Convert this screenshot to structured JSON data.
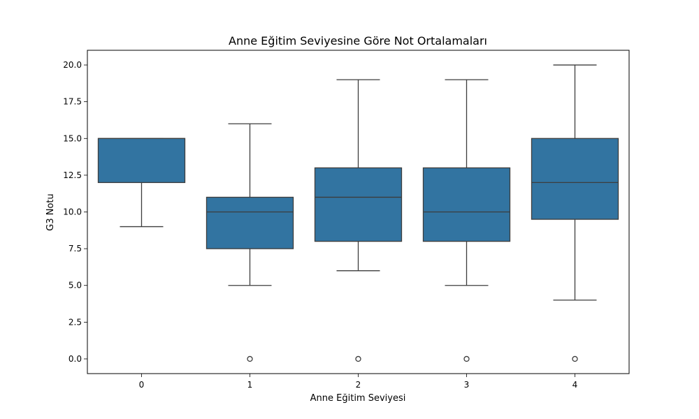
{
  "chart_data": {
    "type": "box",
    "title": "Anne Eğitim Seviyesine Göre Not Ortalamaları",
    "xlabel": "Anne Eğitim Seviyesi",
    "ylabel": "G3 Notu",
    "categories": [
      "0",
      "1",
      "2",
      "3",
      "4"
    ],
    "ylim": [
      -1.0,
      21.0
    ],
    "yticks": [
      "0.0",
      "2.5",
      "5.0",
      "7.5",
      "10.0",
      "12.5",
      "15.0",
      "17.5",
      "20.0"
    ],
    "grid": false,
    "box_color": "#3274a1",
    "line_color": "#3d3d3d",
    "boxes": [
      {
        "category": "0",
        "whisker_low": 9,
        "q1": 12,
        "median": 15,
        "q3": 15,
        "whisker_high": 15,
        "outliers": []
      },
      {
        "category": "1",
        "whisker_low": 5,
        "q1": 7.5,
        "median": 10,
        "q3": 11,
        "whisker_high": 16,
        "outliers": [
          0
        ]
      },
      {
        "category": "2",
        "whisker_low": 6,
        "q1": 8,
        "median": 11,
        "q3": 13,
        "whisker_high": 19,
        "outliers": [
          0
        ]
      },
      {
        "category": "3",
        "whisker_low": 5,
        "q1": 8,
        "median": 10,
        "q3": 13,
        "whisker_high": 19,
        "outliers": [
          0
        ]
      },
      {
        "category": "4",
        "whisker_low": 4,
        "q1": 9.5,
        "median": 12,
        "q3": 15,
        "whisker_high": 20,
        "outliers": [
          0
        ]
      }
    ]
  }
}
